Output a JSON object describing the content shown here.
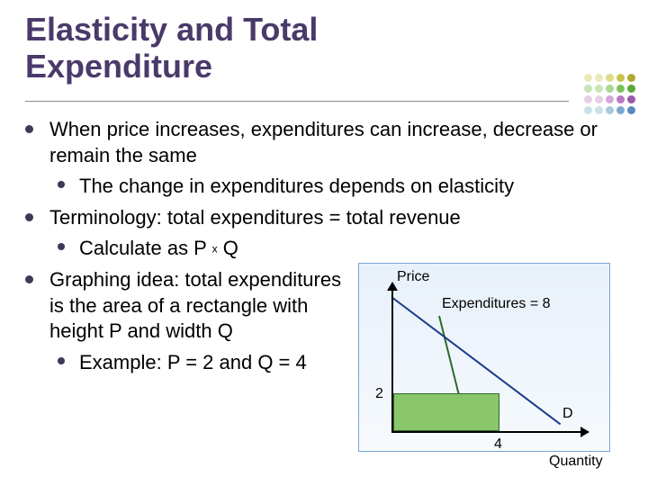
{
  "title_line1": "Elasticity and Total",
  "title_line2": "Expenditure",
  "dots": {
    "colors": [
      "#ece9b8",
      "#ece9b8",
      "#e0dc80",
      "#c9c24a",
      "#b0a832",
      "#c9e5b8",
      "#c9e5b8",
      "#a8d890",
      "#7cc258",
      "#5aa838",
      "#e5d0e8",
      "#e5d0e8",
      "#d4a8d8",
      "#b878c0",
      "#9a58a8",
      "#cce0ec",
      "#cce0ec",
      "#a8c8e0",
      "#78a8d0",
      "#5888c0"
    ]
  },
  "bullets": {
    "p1": "When price increases, expenditures can increase, decrease or remain the same",
    "p1a": "The change in expenditures depends on elasticity",
    "p2": "Terminology:  total expenditures = total revenue",
    "p2a_pre": "Calculate as P ",
    "p2a_x": "x",
    "p2a_post": " Q",
    "p3": "Graphing idea:  total expenditures is the area of a rectangle with height P and width Q",
    "p3a": "Example:  P = 2 and Q = 4"
  },
  "chart": {
    "type": "econ-diagram",
    "price_label": "Price",
    "quantity_label": "Quantity",
    "demand_label": "D",
    "expenditure_label": "Expenditures = 8",
    "p_tick": "2",
    "q_tick": "4",
    "rect_fill": "#8ac66a",
    "rect_border": "#2a6a2a",
    "demand_color": "#1a3a8a",
    "axis_color": "#000000",
    "box_border": "#7aa5d6",
    "box_bg_top": "#e8f0fa",
    "box_bg_bot": "#f6fafd",
    "callout_color": "#2a6a2a"
  }
}
